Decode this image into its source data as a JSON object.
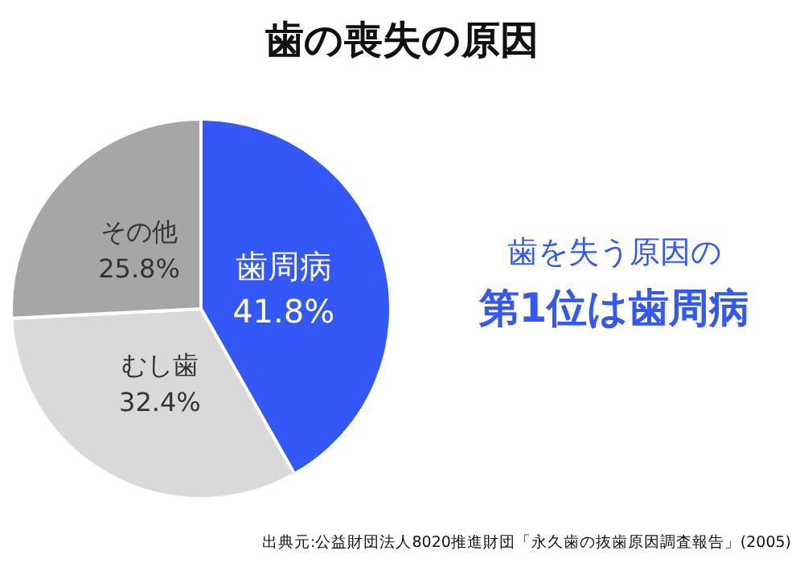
{
  "chart_data": {
    "type": "pie",
    "title": "歯の喪失の原因",
    "categories": [
      "歯周病",
      "むし歯",
      "その他"
    ],
    "values": [
      41.8,
      32.4,
      25.8
    ],
    "value_labels": [
      "41.8%",
      "32.4%",
      "25.8%"
    ],
    "colors": [
      "#3358f6",
      "#d9d9d9",
      "#a6a6a6"
    ],
    "annotations": [
      "歯を失う原因の",
      "第1位は歯周病",
      "出典元:公益財団法人8020推進財団「永久歯の抜歯原因調査報告」(2005)"
    ]
  }
}
